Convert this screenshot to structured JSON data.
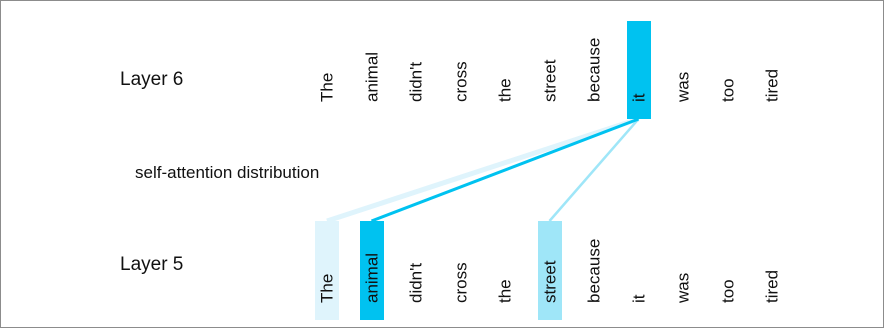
{
  "colors": {
    "strong": "#00c2f0",
    "medium": "#9fe6f8",
    "weak": "#dff4fc",
    "border": "#8c8c8c"
  },
  "top_layer": {
    "label": "Layer 6",
    "tokens": [
      "The",
      "animal",
      "didn't",
      "cross",
      "the",
      "street",
      "because",
      "it",
      "was",
      "too",
      "tired"
    ],
    "highlighted_index": 7
  },
  "caption": "self-attention distribution",
  "bottom_layer": {
    "label": "Layer 5",
    "tokens": [
      "The",
      "animal",
      "didn't",
      "cross",
      "the",
      "street",
      "because",
      "it",
      "was",
      "too",
      "tired"
    ]
  },
  "attention": [
    {
      "from": 7,
      "to": 1,
      "strength": "strong"
    },
    {
      "from": 7,
      "to": 5,
      "strength": "medium"
    },
    {
      "from": 7,
      "to": 0,
      "strength": "weak"
    }
  ]
}
